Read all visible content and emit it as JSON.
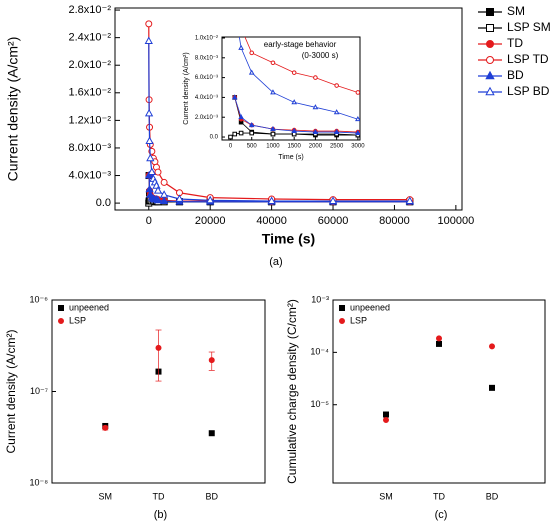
{
  "chart_data": [
    {
      "type": "line",
      "panel_label": "(a)",
      "xlabel": "Time (s)",
      "ylabel": "Current density (A/cm²)",
      "x": [
        0,
        100,
        250,
        500,
        1000,
        1500,
        2000,
        2500,
        3000,
        5000,
        10000,
        20000,
        40000,
        60000,
        85000
      ],
      "xlim": [
        -11000,
        102000
      ],
      "xticks": [
        0,
        20000,
        40000,
        60000,
        80000,
        100000
      ],
      "ylim": [
        -0.001,
        0.0283
      ],
      "yticks": [
        {
          "value": 0,
          "label": "0.0"
        },
        {
          "value": 0.004,
          "label": "4.0x10⁻³"
        },
        {
          "value": 0.008,
          "label": "8.0x10⁻³"
        },
        {
          "value": 0.012,
          "label": "1.2x10⁻²"
        },
        {
          "value": 0.016,
          "label": "1.6x10⁻²"
        },
        {
          "value": 0.02,
          "label": "2.0x10⁻²"
        },
        {
          "value": 0.024,
          "label": "2.4x10⁻²"
        },
        {
          "value": 0.028,
          "label": "2.8x10⁻²"
        }
      ],
      "legend": "right",
      "series": [
        {
          "name": "SM",
          "color": "#000000",
          "marker": "square",
          "filled": true,
          "values": [
            null,
            0.004,
            0.0015,
            0.0005,
            0.0003,
            0.0003,
            0.0002,
            0.0002,
            0.0002,
            0.0002,
            0.0002,
            0.0002,
            0.0002,
            0.0002,
            0.0002
          ]
        },
        {
          "name": "LSP SM",
          "color": "#000000",
          "marker": "square",
          "filled": false,
          "values": [
            0,
            0.0003,
            0.0004,
            0.0004,
            0.0003,
            0.0003,
            0.0003,
            0.0003,
            0.0002,
            0.0002,
            0.0002,
            0.0002,
            0.0002,
            0.0002,
            0.0002
          ]
        },
        {
          "name": "TD",
          "color": "#e41a1c",
          "marker": "circle",
          "filled": true,
          "values": [
            null,
            0.004,
            0.0018,
            0.0012,
            0.0008,
            0.0007,
            0.0006,
            0.0006,
            0.0005,
            0.0004,
            0.0003,
            0.0003,
            0.0002,
            0.0002,
            0.0002
          ]
        },
        {
          "name": "LSP TD",
          "color": "#e41a1c",
          "marker": "circle",
          "filled": false,
          "values": [
            0.026,
            0.015,
            0.011,
            0.0085,
            0.0075,
            0.0065,
            0.006,
            0.0052,
            0.0045,
            0.003,
            0.0015,
            0.0008,
            0.0006,
            0.0005,
            0.0005
          ]
        },
        {
          "name": "BD",
          "color": "#1f3fd6",
          "marker": "triangle",
          "filled": true,
          "values": [
            null,
            0.004,
            0.002,
            0.0012,
            0.0008,
            0.0006,
            0.0005,
            0.0005,
            0.0004,
            0.0003,
            0.0002,
            0.0002,
            0.0002,
            0.0002,
            0.0002
          ]
        },
        {
          "name": "LSP BD",
          "color": "#1f3fd6",
          "marker": "triangle",
          "filled": false,
          "values": [
            0.0235,
            0.013,
            0.009,
            0.0065,
            0.0045,
            0.0035,
            0.003,
            0.0025,
            0.0018,
            0.0012,
            0.0006,
            0.0004,
            0.0003,
            0.0003,
            0.0003
          ]
        }
      ],
      "inset": {
        "title": "early-stage behavior",
        "subtitle": "(0-3000 s)",
        "xlabel": "Time (s)",
        "ylabel": "Current density (A/cm²)",
        "xlim": [
          -200,
          3050
        ],
        "xticks": [
          0,
          500,
          1000,
          1500,
          2000,
          2500,
          3000
        ],
        "ylim": [
          -0.0003,
          0.0101
        ],
        "yticks": [
          {
            "value": 0,
            "label": "0.0"
          },
          {
            "value": 0.002,
            "label": "2.0x10⁻³"
          },
          {
            "value": 0.004,
            "label": "4.0x10⁻³"
          },
          {
            "value": 0.006,
            "label": "6.0x10⁻³"
          },
          {
            "value": 0.008,
            "label": "8.0x10⁻³"
          },
          {
            "value": 0.01,
            "label": "1.0x10⁻²"
          }
        ]
      }
    },
    {
      "type": "dot",
      "panel_label": "(b)",
      "ylabel": "Current density (A/cm²)",
      "categories": [
        "SM",
        "TD",
        "BD"
      ],
      "log_scale": true,
      "ylim": [
        1e-08,
        1e-06
      ],
      "yticks": [
        {
          "value": 1e-08,
          "label": "10⁻⁸"
        },
        {
          "value": 1e-07,
          "label": "10⁻⁷"
        },
        {
          "value": 1e-06,
          "label": "10⁻⁶"
        }
      ],
      "legend": "upper left",
      "series": [
        {
          "name": "unpeened",
          "color": "#000000",
          "marker": "square",
          "filled": true,
          "values": [
            4.2e-08,
            1.65e-07,
            3.5e-08
          ]
        },
        {
          "name": "LSP",
          "color": "#e41a1c",
          "marker": "circle",
          "filled": true,
          "values": [
            4e-08,
            3e-07,
            2.2e-07
          ],
          "errors": [
            2e-09,
            1.7e-07,
            5e-08
          ]
        }
      ]
    },
    {
      "type": "dot",
      "panel_label": "(c)",
      "ylabel": "Cumulative charge density (C/cm²)",
      "categories": [
        "SM",
        "TD",
        "BD"
      ],
      "log_scale": true,
      "ylim": [
        3.2e-07,
        0.001
      ],
      "yticks": [
        {
          "value": 1e-05,
          "label": "10⁻⁵"
        },
        {
          "value": 0.0001,
          "label": "10⁻⁴"
        },
        {
          "value": 0.001,
          "label": "10⁻³"
        }
      ],
      "legend": "upper left",
      "series": [
        {
          "name": "unpeened",
          "color": "#000000",
          "marker": "square",
          "filled": true,
          "values": [
            6.5e-06,
            0.000145,
            2.1e-05
          ]
        },
        {
          "name": "LSP",
          "color": "#e41a1c",
          "marker": "circle",
          "filled": true,
          "values": [
            5.1e-06,
            0.000185,
            0.00013
          ]
        }
      ]
    }
  ]
}
